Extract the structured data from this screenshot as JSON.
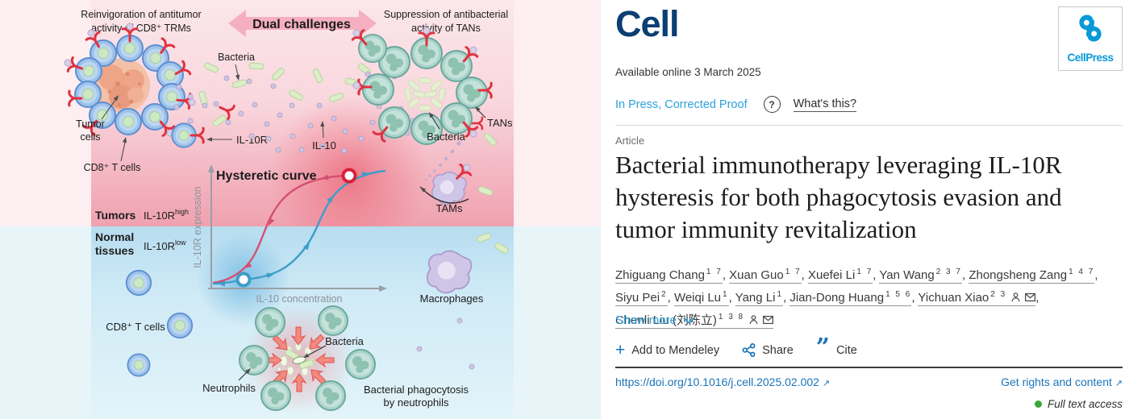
{
  "journal": {
    "name": "Cell",
    "publisher": "CellPress"
  },
  "header": {
    "available_online": "Available online 3 March 2025",
    "in_press": "In Press, Corrected Proof",
    "question_icon": "?",
    "whats_this": "What's this?"
  },
  "article": {
    "type_label": "Article",
    "title_lines": [
      "Bacterial immunotherapy leveraging IL-10R",
      "hysteresis for both phagocytosis evasion and",
      "tumor immunity revitalization"
    ],
    "authors": [
      {
        "name": "Zhiguang Chang",
        "sup": "1 7"
      },
      {
        "name": "Xuan Guo",
        "sup": "1 7"
      },
      {
        "name": "Xuefei Li",
        "sup": "1 7"
      },
      {
        "name": "Yan Wang",
        "sup": "2 3 7"
      },
      {
        "name": "Zhongsheng Zang",
        "sup": "1 4 7"
      },
      {
        "name": "Siyu Pei",
        "sup": "2"
      },
      {
        "name": "Weiqi Lu",
        "sup": "1"
      },
      {
        "name": "Yang Li",
        "sup": "1"
      },
      {
        "name": "Jian-Dong Huang",
        "sup": "1 5 6"
      },
      {
        "name": "Yichuan Xiao",
        "sup": "2 3",
        "icons": [
          "person",
          "mail"
        ]
      },
      {
        "name": "Chenli Liu (刘陈立)",
        "sup": "1 3 8",
        "icons": [
          "person",
          "mail"
        ]
      }
    ],
    "show_more": "Show more",
    "actions": {
      "mendeley": "Add to Mendeley",
      "share": "Share",
      "cite": "Cite"
    },
    "doi": "https://doi.org/10.1016/j.cell.2025.02.002",
    "rights": "Get rights and content",
    "access": "Full text access",
    "external_arrow": "↗"
  },
  "figure": {
    "caption_top_left": [
      "Reinvigoration of antitumor",
      "activity of CD8⁺ TRMs"
    ],
    "dual_challenges": "Dual challenges",
    "caption_top_right": [
      "Suppression of antibacterial",
      "activity of TANs"
    ],
    "bacteria_top": "Bacteria",
    "tumor_cells": [
      "Tumor",
      "cells"
    ],
    "cd8_t_cells_top": "CD8⁺ T cells",
    "il10r": "IL-10R",
    "il10": "IL-10",
    "tans": "TANs",
    "bacteria_right": "Bacteria",
    "tams": "TAMs",
    "chart": {
      "title": "Hysteretic curve",
      "ylabel": "IL-10R expression",
      "xlabel": "IL-10 concentration"
    },
    "tumors": "Tumors",
    "il10r_base": "IL-10R",
    "high": "high",
    "low": "low",
    "normal_tissues": [
      "Normal",
      "tissues"
    ],
    "cd8_t_cells_bottom": "CD8⁺ T cells",
    "macrophages": "Macrophages",
    "neutrophils": "Neutrophils",
    "bacteria_bottom": "Bacteria",
    "phagocytosis": [
      "Bacterial phagocytosis",
      "by neutrophils"
    ]
  },
  "colors": {
    "cell_navy": "#0b3e73",
    "cellpress_blue": "#0999d8",
    "link_blue": "#1b74b8",
    "in_press_blue": "#2da0da",
    "access_green": "#3aa838",
    "tumors_red": "#c22338",
    "normal_blue": "#1e6cb0",
    "curve_pink": "#d64f72",
    "curve_blue": "#3d9dc8"
  }
}
